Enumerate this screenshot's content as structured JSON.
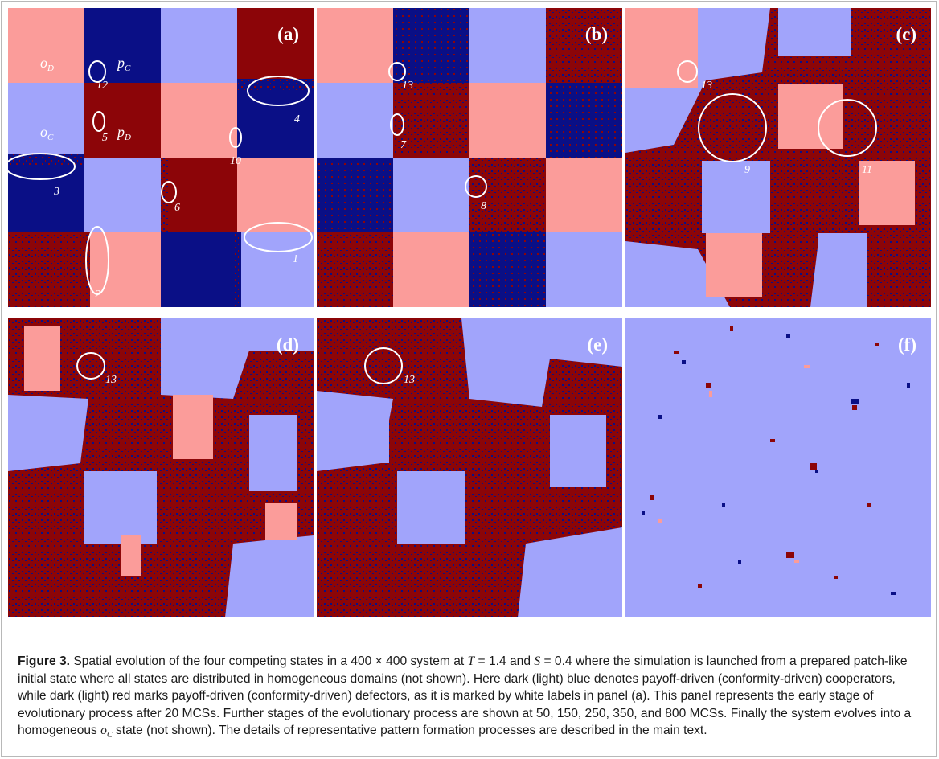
{
  "colors": {
    "payoff_cooperator": "#0a0f86",
    "conformity_cooperator": "#a1a4fb",
    "payoff_defector": "#8c0508",
    "conformity_defector": "#fb9c9a",
    "annotation": "#ffffff"
  },
  "panels": [
    {
      "label": "(a)",
      "domain_labels": [
        "o",
        "D",
        "p",
        "C",
        "o",
        "C",
        "p",
        "D"
      ],
      "numbers": [
        "12",
        "4",
        "5",
        "10",
        "3",
        "6",
        "1",
        "2"
      ]
    },
    {
      "label": "(b)",
      "numbers": [
        "13",
        "7",
        "8"
      ]
    },
    {
      "label": "(c)",
      "numbers": [
        "13",
        "9",
        "11"
      ]
    },
    {
      "label": "(d)",
      "numbers": [
        "13"
      ]
    },
    {
      "label": "(e)",
      "numbers": [
        "13"
      ]
    },
    {
      "label": "(f)",
      "numbers": []
    }
  ],
  "caption": {
    "figure_label": "Figure 3.",
    "text_1": " Spatial evolution of the four competing states in a 400 × 400 system at ",
    "T": "T",
    "text_2": " = 1.4 and ",
    "S": "S",
    "text_3": " = 0.4 where the simulation is launched from a prepared patch-like initial state where all states are distributed in homogeneous domains (not shown). Here dark (light) blue denotes payoff-driven (conformity-driven) cooperators, while dark (light) red marks payoff-driven (conformity-driven) defectors, as it is marked by white labels in panel (a). This panel represents the early stage of evolutionary process after 20 MCSs. Further stages of the evolutionary process are shown at 50, 150, 250, 350, and 800 MCSs. Finally the system evolves into a homogeneous ",
    "oc_o": "o",
    "oc_sub": "C",
    "text_4": " state (not shown). The details of representative pattern formation processes are described in the main text."
  }
}
